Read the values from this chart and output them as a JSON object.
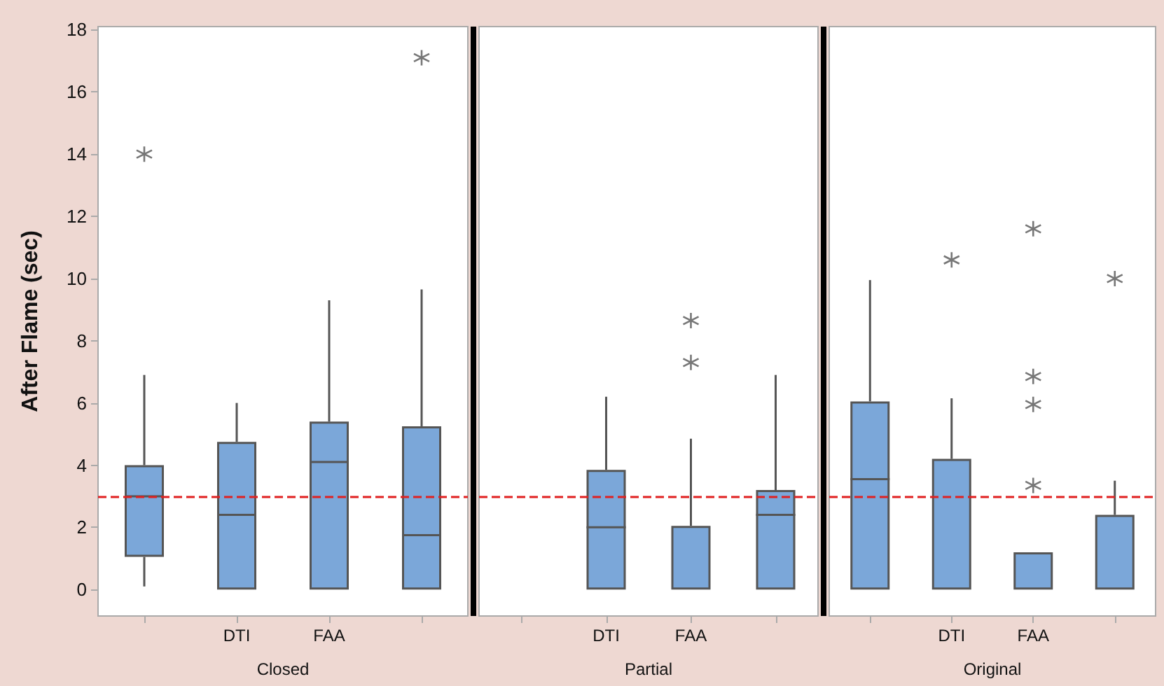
{
  "chart_data": [
    {
      "type": "box",
      "xlabel": "Closed",
      "ylabel": "After Flame (sec)",
      "categories": [
        null,
        "DTI",
        "FAA",
        null
      ],
      "ylim": [
        -0.85,
        18.1
      ],
      "yticks": [
        0,
        2,
        4,
        6,
        8,
        10,
        12,
        14,
        16,
        18
      ],
      "marker": "cross",
      "series": [
        {
          "color": "#7ba7d9",
          "boxes": [
            {
              "low": 0.1,
              "q1": 1.05,
              "median": 3.0,
              "q3": 4.0,
              "high": 6.9,
              "outliers": [
                14.0
              ]
            },
            {
              "low": 0,
              "q1": 0,
              "median": 2.4,
              "q3": 4.75,
              "high": 6.0
            },
            {
              "low": 0,
              "q1": 0,
              "median": 4.1,
              "q3": 5.4,
              "high": 9.3
            },
            {
              "low": 0,
              "q1": 0,
              "median": 1.75,
              "q3": 5.25,
              "high": 9.65,
              "outliers": [
                17.1
              ]
            }
          ]
        }
      ],
      "ref_lines": [
        {
          "axis": "y",
          "value": 3,
          "color": "#e02020",
          "line_style": "dashed"
        }
      ]
    },
    {
      "type": "box",
      "xlabel": "Partial",
      "categories": [
        null,
        "DTI",
        "FAA",
        null
      ],
      "ylim": [
        -0.85,
        18.1
      ],
      "yticks": [
        0,
        2,
        4,
        6,
        8,
        10,
        12,
        14,
        16,
        18
      ],
      "tick_labels": "x",
      "marker": "cross",
      "series": [
        {
          "color": "#7ba7d9",
          "boxes": [
            null,
            {
              "low": 0,
              "q1": 0,
              "median": 2.0,
              "q3": 3.85,
              "high": 6.2
            },
            {
              "low": 0,
              "q1": 0,
              "median": 0,
              "q3": 2.05,
              "high": 4.85,
              "outliers": [
                7.3,
                8.65
              ]
            },
            {
              "low": 0,
              "q1": 0,
              "median": 2.4,
              "q3": 3.2,
              "high": 6.9
            }
          ]
        }
      ],
      "ref_lines": [
        {
          "axis": "y",
          "value": 3,
          "color": "#e02020",
          "line_style": "dashed"
        }
      ]
    },
    {
      "type": "box",
      "xlabel": "Original",
      "categories": [
        null,
        "DTI",
        "FAA",
        null
      ],
      "ylim": [
        -0.85,
        18.1
      ],
      "yticks": [
        0,
        2,
        4,
        6,
        8,
        10,
        12,
        14,
        16,
        18
      ],
      "tick_labels": "x",
      "marker": "cross",
      "series": [
        {
          "color": "#7ba7d9",
          "boxes": [
            {
              "low": 0,
              "q1": 0,
              "median": 3.55,
              "q3": 6.05,
              "high": 9.95
            },
            {
              "low": 0,
              "q1": 0,
              "median": 0,
              "q3": 4.2,
              "high": 6.15,
              "outliers": [
                10.6
              ]
            },
            {
              "low": 0,
              "q1": 0,
              "median": 0,
              "q3": 1.2,
              "high": 1.2,
              "outliers": [
                3.35,
                5.95,
                6.85,
                11.6
              ]
            },
            {
              "low": 0,
              "q1": 0,
              "median": 0,
              "q3": 2.4,
              "high": 3.5,
              "outliers": [
                10.0
              ]
            }
          ]
        }
      ],
      "ref_lines": [
        {
          "axis": "y",
          "value": 3,
          "color": "#e02020",
          "line_style": "dashed"
        }
      ]
    }
  ]
}
